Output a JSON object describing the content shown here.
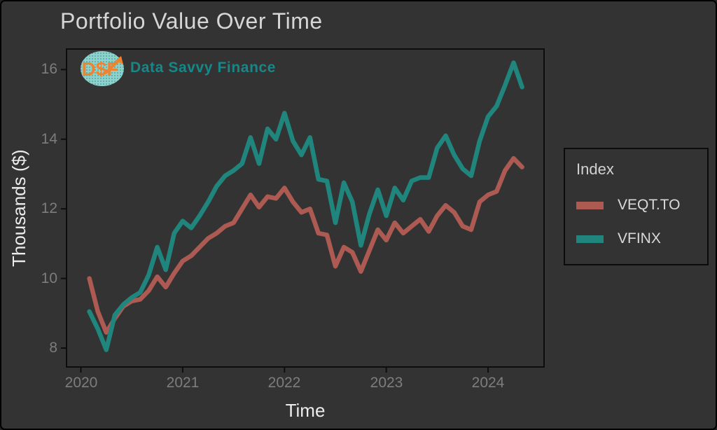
{
  "title": "Portfolio Value Over Time",
  "logo": {
    "monogram": "D$F",
    "brand": "Data Savvy Finance"
  },
  "axes": {
    "x_label": "Time",
    "y_label": "Thousands ($)"
  },
  "legend": {
    "title": "Index",
    "items": [
      {
        "label": "VEQT.TO",
        "color": "#ad5a52"
      },
      {
        "label": "VFINX",
        "color": "#1f857d"
      }
    ]
  },
  "chart_data": {
    "type": "line",
    "title": "Portfolio Value Over Time",
    "xlabel": "Time",
    "ylabel": "Thousands ($)",
    "x_tick_labels": [
      "2020",
      "2021",
      "2022",
      "2023",
      "2024"
    ],
    "y_tick_labels": [
      "8",
      "10",
      "12",
      "14",
      "16"
    ],
    "xlim": [
      2019.86,
      2024.55
    ],
    "ylim": [
      7.5,
      16.6
    ],
    "grid": false,
    "legend_position": "right",
    "legend_title": "Index",
    "frequency": "monthly",
    "start": "2020-02",
    "end": "2024-05",
    "series": [
      {
        "name": "VEQT.TO",
        "color": "#ad5a52",
        "values": [
          10.0,
          9.05,
          8.45,
          8.85,
          9.2,
          9.35,
          9.4,
          9.65,
          10.05,
          9.75,
          10.15,
          10.5,
          10.65,
          10.9,
          11.15,
          11.3,
          11.5,
          11.6,
          12.0,
          12.4,
          12.05,
          12.35,
          12.3,
          12.6,
          12.2,
          11.9,
          12.0,
          11.3,
          11.25,
          10.35,
          10.9,
          10.75,
          10.2,
          10.8,
          11.4,
          11.1,
          11.6,
          11.3,
          11.5,
          11.7,
          11.35,
          11.8,
          12.1,
          11.9,
          11.5,
          11.4,
          12.2,
          12.4,
          12.5,
          13.1,
          13.45,
          13.2
        ]
      },
      {
        "name": "VFINX",
        "color": "#1f857d",
        "values": [
          9.05,
          8.55,
          7.95,
          8.95,
          9.25,
          9.45,
          9.6,
          10.1,
          10.9,
          10.25,
          11.3,
          11.65,
          11.45,
          11.8,
          12.2,
          12.65,
          12.95,
          13.1,
          13.3,
          14.05,
          13.3,
          14.3,
          14.0,
          14.75,
          13.95,
          13.55,
          14.05,
          12.85,
          12.8,
          11.6,
          12.75,
          12.2,
          10.95,
          11.85,
          12.55,
          11.8,
          12.6,
          12.25,
          12.8,
          12.9,
          12.9,
          13.75,
          14.1,
          13.55,
          13.15,
          12.95,
          13.95,
          14.65,
          14.95,
          15.55,
          16.2,
          15.5
        ]
      }
    ]
  },
  "colors": {
    "background": "#333333",
    "panel_border": "#0d0d0d",
    "title_text": "#d6d6d6",
    "axis_title_text": "#ececec",
    "tick_label_text": "#7d7d7d",
    "brand_teal": "#178787",
    "logo_orange": "#ef8430",
    "logo_circle_fill": "#8fd2cd",
    "logo_dot": "#3e9e97"
  }
}
